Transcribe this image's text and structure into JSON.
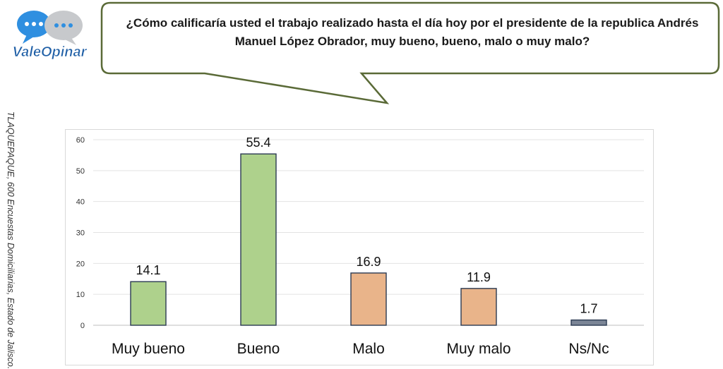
{
  "brand": {
    "logo_text": "ValeOpinar",
    "colors": {
      "bubble_blue": "#2f8fe0",
      "bubble_gray": "#c7c9cc",
      "text_blue": "#1f5fa6"
    }
  },
  "question": {
    "line1": "¿Cómo calificaría usted el trabajo realizado hasta el día hoy por el presidente de la republica Andrés",
    "line2": "Manuel López Obrador, muy bueno, bueno, malo o muy malo?",
    "bubble_border_color": "#5a6a37"
  },
  "side_note": "TLAQUEPAQUE, 600 Encuestas Domiciliarias, Estado de Jalisco.",
  "chart_data": {
    "type": "bar",
    "categories": [
      "Muy bueno",
      "Bueno",
      "Malo",
      "Muy malo",
      "Ns/Nc"
    ],
    "values": [
      14.1,
      55.4,
      16.9,
      11.9,
      1.7
    ],
    "value_labels": [
      "14.1",
      "55.4",
      "16.9",
      "11.9",
      "1.7"
    ],
    "colors": [
      "#aed18c",
      "#aed18c",
      "#e9b48a",
      "#e9b48a",
      "#7b8596"
    ],
    "ylim": [
      0,
      60
    ],
    "yticks": [
      0,
      10,
      20,
      30,
      40,
      50,
      60
    ],
    "ytick_labels": [
      "0",
      "10",
      "20",
      "30",
      "40",
      "50",
      "60"
    ],
    "grid": true,
    "title": "",
    "xlabel": "",
    "ylabel": ""
  }
}
